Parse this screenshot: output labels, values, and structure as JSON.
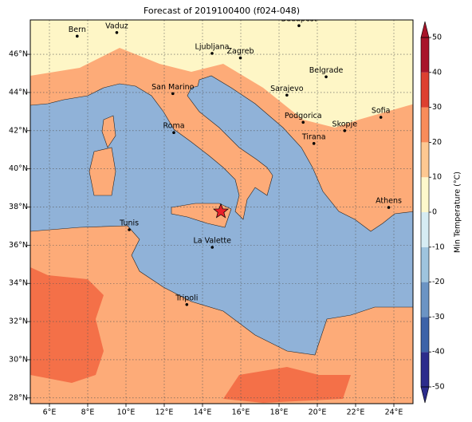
{
  "map": {
    "title": "Forecast of 2019100400 (f024-048)",
    "xlim": [
      5,
      25
    ],
    "ylim": [
      27.7,
      47.8
    ],
    "xticks": [
      {
        "value": 6,
        "label": "6°E"
      },
      {
        "value": 8,
        "label": "8°E"
      },
      {
        "value": 10,
        "label": "10°E"
      },
      {
        "value": 12,
        "label": "12°E"
      },
      {
        "value": 14,
        "label": "14°E"
      },
      {
        "value": 16,
        "label": "16°E"
      },
      {
        "value": 18,
        "label": "18°E"
      },
      {
        "value": 20,
        "label": "20°E"
      },
      {
        "value": 22,
        "label": "22°E"
      },
      {
        "value": 24,
        "label": "24°E"
      }
    ],
    "yticks": [
      {
        "value": 28,
        "label": "28°N"
      },
      {
        "value": 30,
        "label": "30°N"
      },
      {
        "value": 32,
        "label": "32°N"
      },
      {
        "value": 34,
        "label": "34°N"
      },
      {
        "value": 36,
        "label": "36°N"
      },
      {
        "value": 38,
        "label": "38°N"
      },
      {
        "value": 40,
        "label": "40°N"
      },
      {
        "value": 42,
        "label": "42°N"
      },
      {
        "value": 44,
        "label": "44°N"
      },
      {
        "value": 46,
        "label": "46°N"
      }
    ],
    "grid": true,
    "cities": [
      {
        "name": "Bern",
        "lon": 7.45,
        "lat": 46.95
      },
      {
        "name": "Vaduz",
        "lon": 9.52,
        "lat": 47.14
      },
      {
        "name": "Budapest",
        "lon": 19.04,
        "lat": 47.5
      },
      {
        "name": "Ljubljana",
        "lon": 14.5,
        "lat": 46.05
      },
      {
        "name": "Zagreb",
        "lon": 15.98,
        "lat": 45.81
      },
      {
        "name": "Belgrade",
        "lon": 20.46,
        "lat": 44.82
      },
      {
        "name": "San Marino",
        "lon": 12.45,
        "lat": 43.94
      },
      {
        "name": "Sarajevo",
        "lon": 18.41,
        "lat": 43.86
      },
      {
        "name": "Podgorica",
        "lon": 19.26,
        "lat": 42.44
      },
      {
        "name": "Skopje",
        "lon": 21.43,
        "lat": 42.0
      },
      {
        "name": "Sofia",
        "lon": 23.32,
        "lat": 42.7
      },
      {
        "name": "Roma",
        "lon": 12.5,
        "lat": 41.9
      },
      {
        "name": "Tirana",
        "lon": 19.82,
        "lat": 41.33
      },
      {
        "name": "Athens",
        "lon": 23.73,
        "lat": 37.98
      },
      {
        "name": "Tunis",
        "lon": 10.17,
        "lat": 36.81
      },
      {
        "name": "La Valette",
        "lon": 14.51,
        "lat": 35.89
      },
      {
        "name": "Tripoli",
        "lon": 13.18,
        "lat": 32.89
      }
    ],
    "marker": {
      "lon": 14.96,
      "lat": 37.77,
      "color": "#e8202a"
    },
    "colorbar": {
      "label": "Min Temperature (°C)",
      "lim": [
        -50,
        50
      ],
      "ticks": [
        -50,
        -40,
        -30,
        -20,
        -10,
        0,
        10,
        20,
        30,
        40,
        50
      ],
      "colors": [
        "#2c2c8c",
        "#3d63a8",
        "#6b94c4",
        "#9ec4de",
        "#d6ecf3",
        "#fdf8cc",
        "#fdc891",
        "#f88c5a",
        "#dd4030",
        "#a8152a"
      ]
    }
  }
}
